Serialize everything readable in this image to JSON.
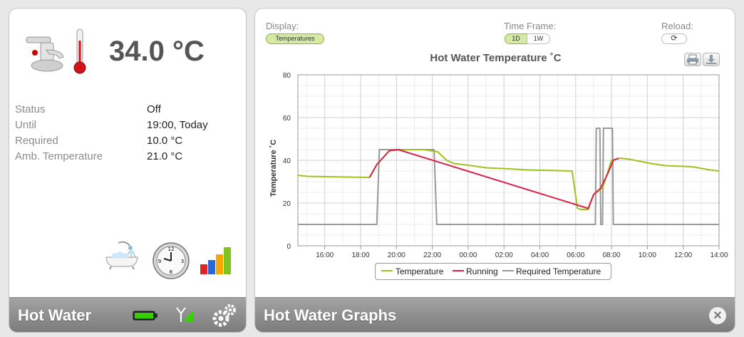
{
  "left_panel": {
    "temperature": "34.0 °C",
    "info": [
      {
        "label": "Status",
        "value": "Off"
      },
      {
        "label": "Until",
        "value": "19:00, Today"
      },
      {
        "label": "Required",
        "value": "10.0 °C"
      },
      {
        "label": "Amb. Temperature",
        "value": "21.0 °C"
      }
    ],
    "footer_title": "Hot Water",
    "icons": [
      "faucet-icon",
      "thermometer-icon",
      "bath-icon",
      "clock-icon",
      "bar-chart-icon",
      "battery-icon",
      "signal-icon",
      "settings-icon"
    ]
  },
  "right_panel": {
    "display_label": "Display:",
    "display_selected": "Temperatures",
    "timeframe_label": "Time Frame:",
    "timeframe_options": [
      "1D",
      "1W"
    ],
    "timeframe_selected": "1D",
    "reload_label": "Reload:",
    "footer_title": "Hot Water Graphs"
  },
  "colors": {
    "temperature": "#9dc31c",
    "running": "#d8224b",
    "required": "#999999"
  },
  "chart_data": {
    "type": "line",
    "title": "Hot Water Temperature ˚C",
    "ylabel": "Temperature ˚C",
    "xlabel": "",
    "ylim": [
      0,
      80
    ],
    "xlim": [
      14.5,
      38
    ],
    "yticks": [
      0,
      20,
      40,
      60,
      80
    ],
    "xticks": [
      {
        "x": 16,
        "label": "16:00"
      },
      {
        "x": 18,
        "label": "18:00"
      },
      {
        "x": 20,
        "label": "20:00"
      },
      {
        "x": 22,
        "label": "22:00"
      },
      {
        "x": 24,
        "label": "00:00"
      },
      {
        "x": 26,
        "label": "02:00"
      },
      {
        "x": 28,
        "label": "04:00"
      },
      {
        "x": 30,
        "label": "06:00"
      },
      {
        "x": 32,
        "label": "08:00"
      },
      {
        "x": 34,
        "label": "10:00"
      },
      {
        "x": 36,
        "label": "12:00"
      },
      {
        "x": 38,
        "label": "14:00"
      }
    ],
    "grid": true,
    "legend_position": "bottom-center",
    "series": [
      {
        "name": "Temperature",
        "points": [
          [
            14.5,
            33
          ],
          [
            15,
            32.5
          ],
          [
            17,
            32.2
          ],
          [
            18.5,
            32
          ],
          [
            18.9,
            38
          ],
          [
            19.6,
            44.5
          ],
          [
            20.5,
            45
          ],
          [
            21.5,
            45
          ],
          [
            22.3,
            44
          ],
          [
            22.8,
            40
          ],
          [
            23.2,
            38.5
          ],
          [
            24.2,
            37.5
          ],
          [
            25,
            36.5
          ],
          [
            26.3,
            36
          ],
          [
            27.3,
            35.5
          ],
          [
            28.5,
            35.3
          ],
          [
            29.8,
            35
          ],
          [
            30.1,
            17.5
          ],
          [
            30.3,
            17
          ],
          [
            30.7,
            17
          ],
          [
            31,
            24
          ],
          [
            31.5,
            27
          ],
          [
            32,
            40
          ],
          [
            32.5,
            41
          ],
          [
            33,
            40.5
          ],
          [
            34.2,
            38.5
          ],
          [
            35,
            37.5
          ],
          [
            36.5,
            37
          ],
          [
            37.5,
            35.5
          ],
          [
            38,
            35
          ]
        ]
      },
      {
        "name": "Running",
        "points": [
          [
            18.5,
            32
          ],
          [
            18.9,
            38
          ],
          [
            19.6,
            44.5
          ],
          [
            20.1,
            45
          ],
          [
            30.7,
            17.5
          ],
          [
            31,
            24
          ],
          [
            31.4,
            27
          ],
          [
            31.8,
            34
          ],
          [
            32.1,
            40
          ],
          [
            32.4,
            41
          ]
        ]
      },
      {
        "name": "Required Temperature",
        "points": [
          [
            14.5,
            10
          ],
          [
            18.9,
            10
          ],
          [
            19.05,
            45
          ],
          [
            22.1,
            45
          ],
          [
            22.25,
            10
          ],
          [
            31.1,
            10
          ],
          [
            31.15,
            55
          ],
          [
            31.35,
            55
          ],
          [
            31.4,
            10
          ],
          [
            31.5,
            10
          ],
          [
            31.55,
            55
          ],
          [
            32.05,
            55
          ],
          [
            32.1,
            10
          ],
          [
            38,
            10
          ]
        ]
      }
    ]
  }
}
